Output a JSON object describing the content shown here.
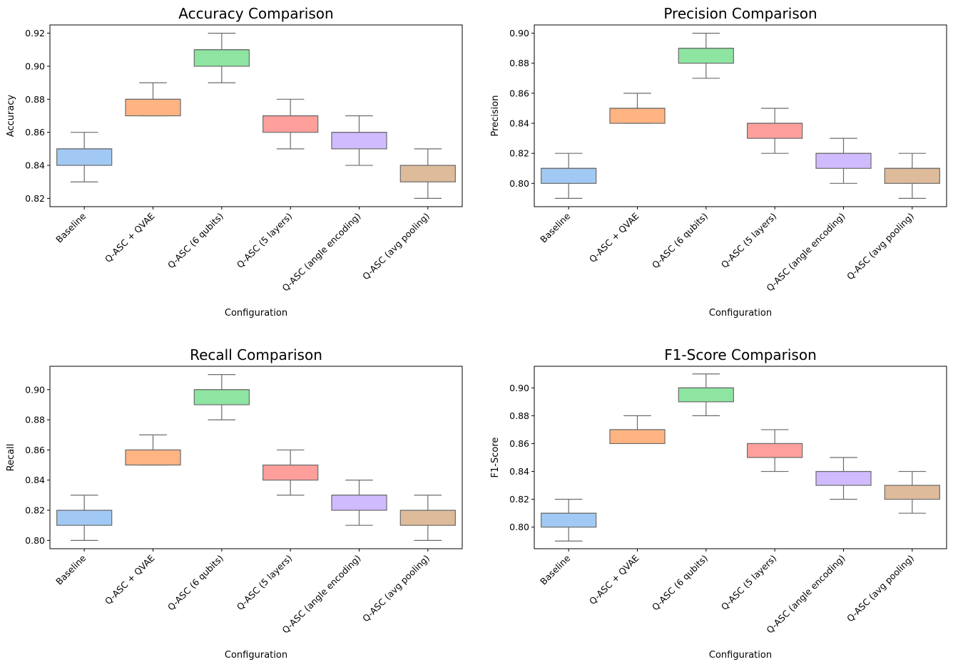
{
  "chart_data": [
    {
      "type": "box",
      "title": "Accuracy Comparison",
      "xlabel": "Configuration",
      "ylabel": "Accuracy",
      "ylim": [
        0.815,
        0.925
      ],
      "yticks": [
        "0.82",
        "0.84",
        "0.86",
        "0.88",
        "0.90",
        "0.92"
      ],
      "categories": [
        "Baseline",
        "Q-ASC + QVAE",
        "Q-ASC (6 qubits)",
        "Q-ASC (5 layers)",
        "Q-ASC (angle encoding)",
        "Q-ASC (avg pooling)"
      ],
      "boxes": [
        {
          "min": 0.83,
          "q1": 0.84,
          "median": 0.85,
          "q3": 0.85,
          "max": 0.86
        },
        {
          "min": 0.87,
          "q1": 0.87,
          "median": 0.88,
          "q3": 0.88,
          "max": 0.89
        },
        {
          "min": 0.89,
          "q1": 0.9,
          "median": 0.91,
          "q3": 0.91,
          "max": 0.92
        },
        {
          "min": 0.85,
          "q1": 0.86,
          "median": 0.87,
          "q3": 0.87,
          "max": 0.88
        },
        {
          "min": 0.84,
          "q1": 0.85,
          "median": 0.86,
          "q3": 0.86,
          "max": 0.87
        },
        {
          "min": 0.82,
          "q1": 0.83,
          "median": 0.84,
          "q3": 0.84,
          "max": 0.85
        }
      ]
    },
    {
      "type": "box",
      "title": "Precision Comparison",
      "xlabel": "Configuration",
      "ylabel": "Precision",
      "ylim": [
        0.7845,
        0.9055
      ],
      "yticks": [
        "0.80",
        "0.82",
        "0.84",
        "0.86",
        "0.88",
        "0.90"
      ],
      "categories": [
        "Baseline",
        "Q-ASC + QVAE",
        "Q-ASC (6 qubits)",
        "Q-ASC (5 layers)",
        "Q-ASC (angle encoding)",
        "Q-ASC (avg pooling)"
      ],
      "boxes": [
        {
          "min": 0.79,
          "q1": 0.8,
          "median": 0.81,
          "q3": 0.81,
          "max": 0.82
        },
        {
          "min": 0.84,
          "q1": 0.84,
          "median": 0.85,
          "q3": 0.85,
          "max": 0.86
        },
        {
          "min": 0.87,
          "q1": 0.88,
          "median": 0.89,
          "q3": 0.89,
          "max": 0.9
        },
        {
          "min": 0.82,
          "q1": 0.83,
          "median": 0.84,
          "q3": 0.84,
          "max": 0.85
        },
        {
          "min": 0.8,
          "q1": 0.81,
          "median": 0.82,
          "q3": 0.82,
          "max": 0.83
        },
        {
          "min": 0.79,
          "q1": 0.8,
          "median": 0.81,
          "q3": 0.81,
          "max": 0.82
        }
      ]
    },
    {
      "type": "box",
      "title": "Recall Comparison",
      "xlabel": "Configuration",
      "ylabel": "Recall",
      "ylim": [
        0.7945,
        0.9155
      ],
      "yticks": [
        "0.80",
        "0.82",
        "0.84",
        "0.86",
        "0.88",
        "0.90"
      ],
      "categories": [
        "Baseline",
        "Q-ASC + QVAE",
        "Q-ASC (6 qubits)",
        "Q-ASC (5 layers)",
        "Q-ASC (angle encoding)",
        "Q-ASC (avg pooling)"
      ],
      "boxes": [
        {
          "min": 0.8,
          "q1": 0.81,
          "median": 0.82,
          "q3": 0.82,
          "max": 0.83
        },
        {
          "min": 0.85,
          "q1": 0.85,
          "median": 0.86,
          "q3": 0.86,
          "max": 0.87
        },
        {
          "min": 0.88,
          "q1": 0.89,
          "median": 0.9,
          "q3": 0.9,
          "max": 0.91
        },
        {
          "min": 0.83,
          "q1": 0.84,
          "median": 0.85,
          "q3": 0.85,
          "max": 0.86
        },
        {
          "min": 0.81,
          "q1": 0.82,
          "median": 0.83,
          "q3": 0.83,
          "max": 0.84
        },
        {
          "min": 0.8,
          "q1": 0.81,
          "median": 0.82,
          "q3": 0.82,
          "max": 0.83
        }
      ]
    },
    {
      "type": "box",
      "title": "F1-Score Comparison",
      "xlabel": "Configuration",
      "ylabel": "F1-Score",
      "ylim": [
        0.7845,
        0.9155
      ],
      "yticks": [
        "0.80",
        "0.82",
        "0.84",
        "0.86",
        "0.88",
        "0.90"
      ],
      "categories": [
        "Baseline",
        "Q-ASC + QVAE",
        "Q-ASC (6 qubits)",
        "Q-ASC (5 layers)",
        "Q-ASC (angle encoding)",
        "Q-ASC (avg pooling)"
      ],
      "boxes": [
        {
          "min": 0.79,
          "q1": 0.8,
          "median": 0.81,
          "q3": 0.81,
          "max": 0.82
        },
        {
          "min": 0.86,
          "q1": 0.86,
          "median": 0.87,
          "q3": 0.87,
          "max": 0.88
        },
        {
          "min": 0.88,
          "q1": 0.89,
          "median": 0.9,
          "q3": 0.9,
          "max": 0.91
        },
        {
          "min": 0.84,
          "q1": 0.85,
          "median": 0.86,
          "q3": 0.86,
          "max": 0.87
        },
        {
          "min": 0.82,
          "q1": 0.83,
          "median": 0.84,
          "q3": 0.84,
          "max": 0.85
        },
        {
          "min": 0.81,
          "q1": 0.82,
          "median": 0.83,
          "q3": 0.83,
          "max": 0.84
        }
      ]
    }
  ],
  "palette": [
    "#a1c9f4",
    "#ffb482",
    "#8de5a1",
    "#ff9f9b",
    "#d0bbff",
    "#debb9b"
  ],
  "box_edge_color": "#6b6b6b"
}
